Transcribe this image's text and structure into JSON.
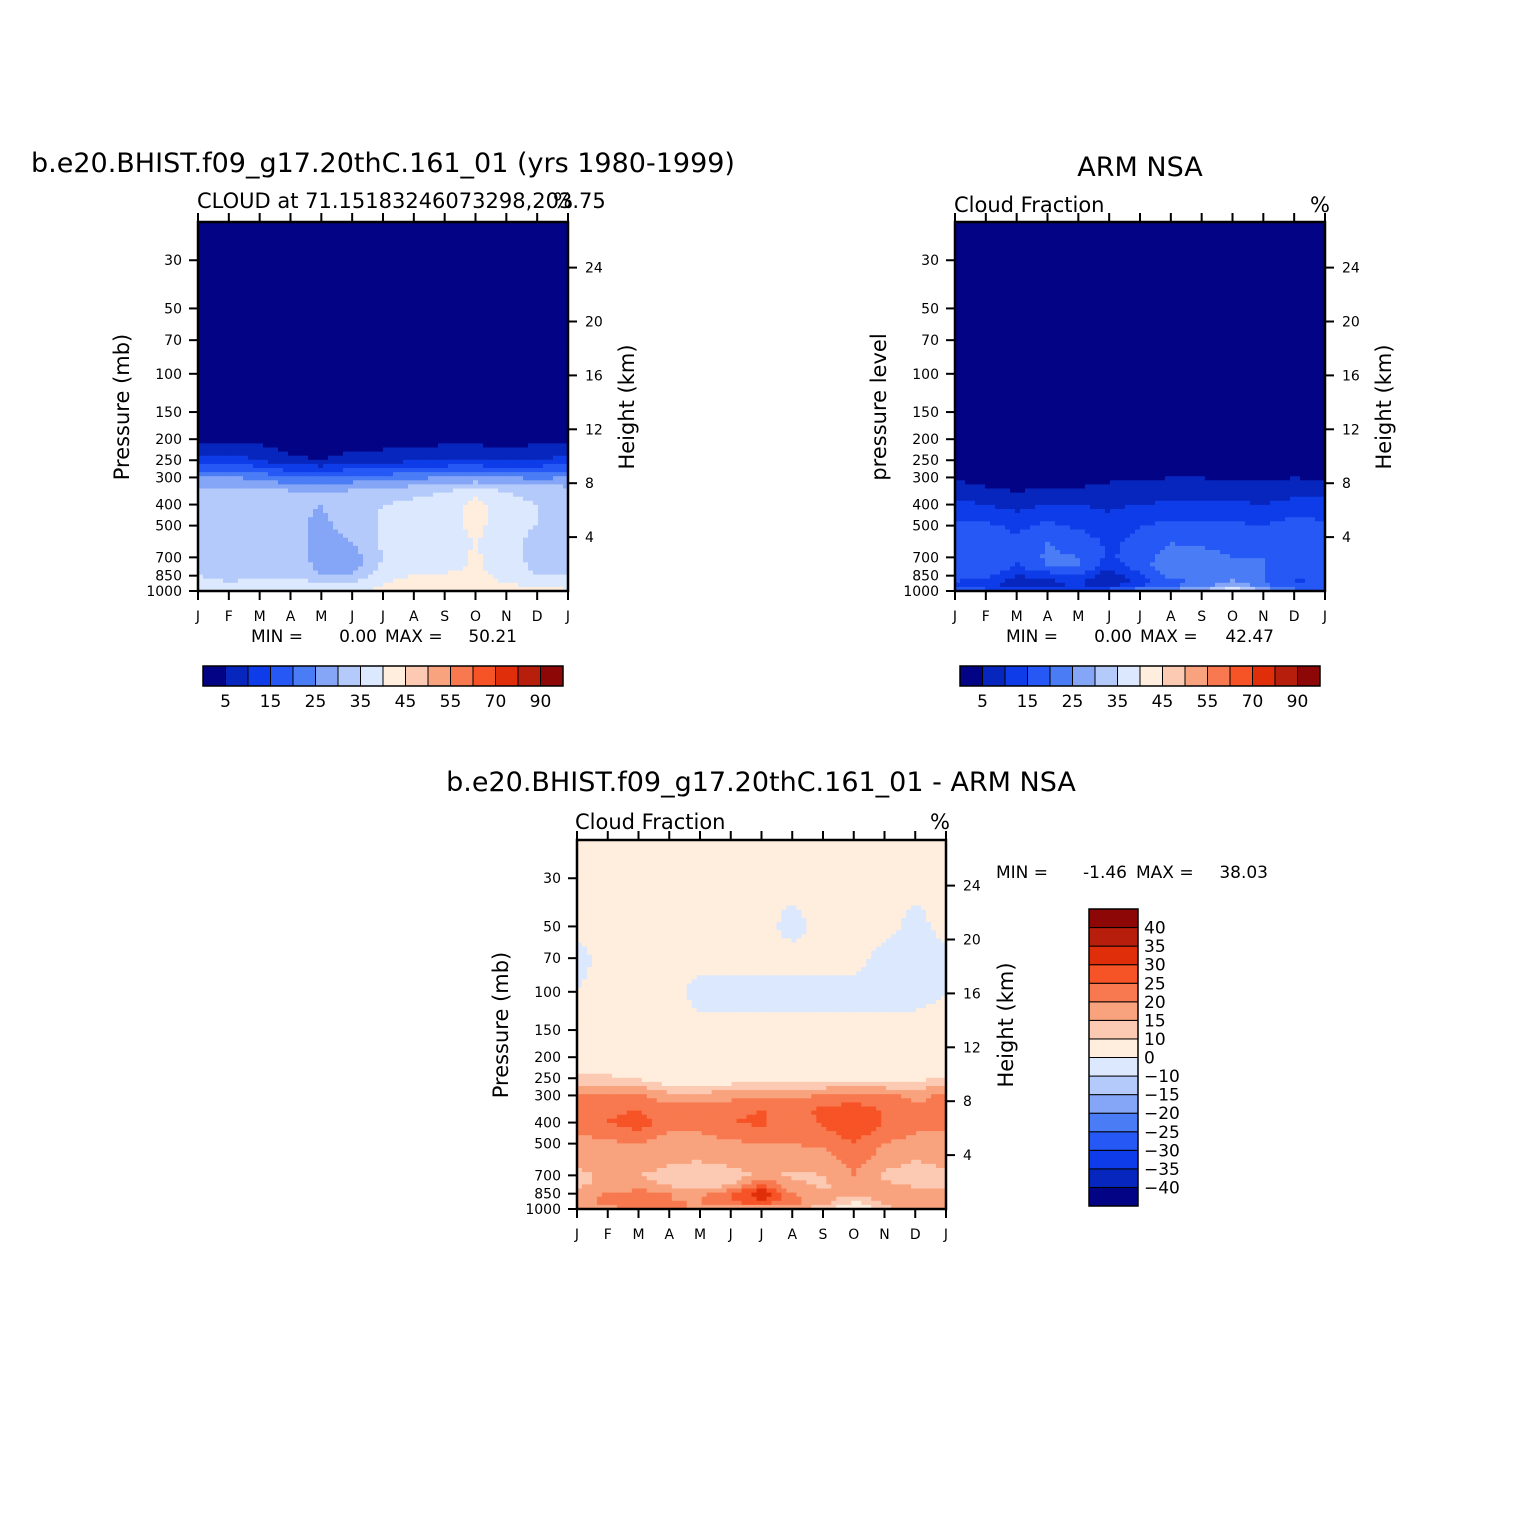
{
  "colors": {
    "cloud_scale": [
      "#030385",
      "#0726bd",
      "#0d3ce8",
      "#2558f5",
      "#4a7cf6",
      "#85a6f7",
      "#b4cafa",
      "#dbe8fd",
      "#ffeedd",
      "#fccab2",
      "#f9a27e",
      "#f8794f",
      "#f65326",
      "#e02e0b",
      "#b71e0b",
      "#8e0707"
    ],
    "diff_scale": [
      "#030385",
      "#0726bd",
      "#0d3ce8",
      "#2558f5",
      "#4a7cf6",
      "#85a6f7",
      "#b4cafa",
      "#dbe8fd",
      "#ffeedd",
      "#fccab2",
      "#f9a27e",
      "#f8794f",
      "#f65326",
      "#e02e0b",
      "#b71e0b",
      "#8e0707"
    ]
  },
  "chart_data": [
    {
      "id": "model",
      "type": "heatmap",
      "title": "b.e20.BHIST.f09_g17.20thC.161_01 (yrs 1980-1999)",
      "subtitle": "CLOUD at 71.15183246073298,203.75",
      "units_label": "%",
      "ylabel": "Pressure (mb)",
      "ylabel_right": "Height (km)",
      "xlabel": "",
      "x_ticks": [
        "J",
        "F",
        "M",
        "A",
        "M",
        "J",
        "J",
        "A",
        "S",
        "O",
        "N",
        "D",
        "J"
      ],
      "y_ticks": [
        30,
        50,
        70,
        100,
        150,
        200,
        250,
        300,
        400,
        500,
        700,
        850,
        1000
      ],
      "y_ticks_right": [
        24,
        20,
        16,
        12,
        8,
        4
      ],
      "ylim": [
        1000,
        20
      ],
      "stats": {
        "min_label": "MIN =",
        "min": "0.00",
        "max_label": "MAX =",
        "max": "50.21"
      },
      "colorbar": {
        "orientation": "horizontal",
        "labels": [
          "5",
          "15",
          "25",
          "35",
          "45",
          "55",
          "70",
          "90"
        ]
      },
      "z_levels": [
        1000,
        925,
        850,
        775,
        700,
        600,
        500,
        400,
        350,
        300,
        250,
        200,
        150,
        100,
        70,
        50,
        30,
        20
      ],
      "months": [
        "J",
        "F",
        "M",
        "A",
        "M",
        "J",
        "J",
        "A",
        "S",
        "O",
        "N",
        "D",
        "J"
      ],
      "values": [
        [
          40,
          38,
          40,
          40,
          38,
          39,
          41,
          44,
          44,
          43,
          43,
          44,
          40
        ],
        [
          38,
          36,
          37,
          38,
          36,
          37,
          40,
          43,
          44,
          43,
          40,
          38,
          38
        ],
        [
          35,
          32,
          34,
          34,
          30,
          30,
          38,
          40,
          41,
          42,
          38,
          35,
          35
        ],
        [
          34,
          31,
          34,
          33,
          29,
          28,
          36,
          38,
          38,
          41,
          37,
          34,
          34
        ],
        [
          34,
          31,
          34,
          32,
          28,
          27,
          35,
          37,
          37,
          41,
          36,
          34,
          34
        ],
        [
          35,
          33,
          34,
          32,
          28,
          30,
          36,
          37,
          37,
          40,
          36,
          34,
          35
        ],
        [
          34,
          34,
          34,
          31,
          29,
          32,
          36,
          37,
          37,
          42,
          36,
          35,
          34
        ],
        [
          34,
          34,
          33,
          31,
          30,
          32,
          35,
          36,
          37,
          42,
          36,
          35,
          34
        ],
        [
          33,
          33,
          32,
          31,
          30,
          31,
          33,
          34,
          35,
          38,
          35,
          34,
          33
        ],
        [
          25,
          25,
          24,
          20,
          20,
          22,
          22,
          24,
          25,
          26,
          25,
          24,
          25
        ],
        [
          12,
          12,
          10,
          6,
          5,
          7,
          8,
          9,
          10,
          10,
          9,
          10,
          12
        ],
        [
          4,
          4,
          3,
          2,
          2,
          2,
          2,
          3,
          3,
          3,
          3,
          3,
          4
        ],
        [
          1,
          1,
          1,
          1,
          1,
          1,
          1,
          1,
          1,
          1,
          1,
          1,
          1
        ],
        [
          0,
          0,
          0,
          0,
          0,
          0,
          0,
          0,
          0,
          0,
          0,
          0,
          0
        ],
        [
          0,
          0,
          0,
          0,
          0,
          0,
          0,
          0,
          0,
          0,
          0,
          0,
          0
        ],
        [
          0,
          0,
          0,
          0,
          0,
          0,
          0,
          0,
          0,
          0,
          0,
          0,
          0
        ],
        [
          0,
          0,
          0,
          0,
          0,
          0,
          0,
          0,
          0,
          0,
          0,
          0,
          0
        ],
        [
          0,
          0,
          0,
          0,
          0,
          0,
          0,
          0,
          0,
          0,
          0,
          0,
          0
        ]
      ]
    },
    {
      "id": "obs",
      "type": "heatmap",
      "title": "ARM NSA",
      "subtitle": "Cloud Fraction",
      "units_label": "%",
      "ylabel": "pressure level",
      "ylabel_right": "Height (km)",
      "xlabel": "",
      "x_ticks": [
        "J",
        "F",
        "M",
        "A",
        "M",
        "J",
        "J",
        "A",
        "S",
        "O",
        "N",
        "D",
        "J"
      ],
      "y_ticks": [
        30,
        50,
        70,
        100,
        150,
        200,
        250,
        300,
        400,
        500,
        700,
        850,
        1000
      ],
      "y_ticks_right": [
        24,
        20,
        16,
        12,
        8,
        4
      ],
      "ylim": [
        1000,
        20
      ],
      "stats": {
        "min_label": "MIN =",
        "min": "0.00",
        "max_label": "MAX =",
        "max": "42.47"
      },
      "colorbar": {
        "orientation": "horizontal",
        "labels": [
          "5",
          "15",
          "25",
          "35",
          "45",
          "55",
          "70",
          "90"
        ]
      },
      "z_levels": [
        1000,
        925,
        850,
        775,
        700,
        600,
        500,
        400,
        350,
        300,
        250,
        200,
        150,
        100,
        70,
        50,
        30,
        20
      ],
      "months": [
        "J",
        "F",
        "M",
        "A",
        "M",
        "J",
        "J",
        "A",
        "S",
        "O",
        "N",
        "D",
        "J"
      ],
      "values": [
        [
          20,
          16,
          14,
          14,
          16,
          18,
          24,
          26,
          30,
          42,
          30,
          22,
          20
        ],
        [
          14,
          12,
          6,
          8,
          10,
          5,
          12,
          18,
          20,
          26,
          20,
          14,
          14
        ],
        [
          18,
          16,
          10,
          12,
          14,
          6,
          14,
          22,
          22,
          24,
          20,
          16,
          18
        ],
        [
          18,
          20,
          14,
          20,
          20,
          12,
          18,
          24,
          22,
          22,
          20,
          18,
          18
        ],
        [
          18,
          20,
          16,
          21,
          20,
          14,
          18,
          22,
          22,
          20,
          20,
          20,
          18
        ],
        [
          18,
          18,
          16,
          20,
          18,
          14,
          17,
          20,
          19,
          18,
          18,
          20,
          18
        ],
        [
          16,
          16,
          14,
          16,
          14,
          12,
          15,
          16,
          16,
          16,
          15,
          17,
          16
        ],
        [
          12,
          10,
          8,
          10,
          10,
          9,
          10,
          11,
          11,
          11,
          10,
          12,
          12
        ],
        [
          8,
          6,
          5,
          6,
          6,
          7,
          7,
          8,
          8,
          7,
          7,
          8,
          8
        ],
        [
          4,
          3,
          2,
          3,
          3,
          4,
          4,
          5,
          5,
          4,
          4,
          5,
          4
        ],
        [
          1,
          1,
          1,
          1,
          1,
          1,
          1,
          2,
          2,
          1,
          1,
          2,
          1
        ],
        [
          0,
          0,
          0,
          0,
          0,
          0,
          0,
          0,
          0,
          0,
          0,
          0,
          0
        ],
        [
          0,
          0,
          0,
          0,
          0,
          0,
          0,
          0,
          0,
          0,
          0,
          0,
          0
        ],
        [
          0,
          0,
          0,
          0,
          0,
          0,
          0,
          0,
          0,
          0,
          0,
          0,
          0
        ],
        [
          0,
          0,
          0,
          0,
          0,
          0,
          0,
          0,
          0,
          0,
          0,
          0,
          0
        ],
        [
          0,
          0,
          0,
          0,
          0,
          0,
          0,
          0,
          0,
          0,
          0,
          0,
          0
        ],
        [
          0,
          0,
          0,
          0,
          0,
          0,
          0,
          0,
          0,
          0,
          0,
          0,
          0
        ],
        [
          0,
          0,
          0,
          0,
          0,
          0,
          0,
          0,
          0,
          0,
          0,
          0,
          0
        ]
      ]
    },
    {
      "id": "diff",
      "type": "heatmap",
      "title": "b.e20.BHIST.f09_g17.20thC.161_01 - ARM NSA",
      "subtitle": "Cloud Fraction",
      "units_label": "%",
      "ylabel": "Pressure (mb)",
      "ylabel_right": "Height (km)",
      "xlabel": "",
      "x_ticks": [
        "J",
        "F",
        "M",
        "A",
        "M",
        "J",
        "J",
        "A",
        "S",
        "O",
        "N",
        "D",
        "J"
      ],
      "y_ticks": [
        30,
        50,
        70,
        100,
        150,
        200,
        250,
        300,
        400,
        500,
        700,
        850,
        1000
      ],
      "y_ticks_right": [
        24,
        20,
        16,
        12,
        8,
        4
      ],
      "ylim": [
        1000,
        20
      ],
      "stats": {
        "min_label": "MIN =",
        "min": "-1.46",
        "max_label": "MAX =",
        "max": "38.03"
      },
      "colorbar": {
        "orientation": "vertical",
        "labels": [
          "40",
          "35",
          "30",
          "25",
          "20",
          "15",
          "10",
          "0",
          "-10",
          "-15",
          "-20",
          "-25",
          "-30",
          "-35",
          "-40"
        ]
      },
      "z_levels": [
        1000,
        925,
        850,
        775,
        700,
        600,
        500,
        400,
        350,
        300,
        250,
        200,
        150,
        100,
        70,
        50,
        30,
        20
      ],
      "months": [
        "J",
        "F",
        "M",
        "A",
        "M",
        "J",
        "J",
        "A",
        "S",
        "O",
        "N",
        "D",
        "J"
      ],
      "values": [
        [
          15,
          18,
          22,
          22,
          18,
          15,
          12,
          15,
          12,
          2,
          13,
          18,
          15
        ],
        [
          18,
          22,
          24,
          20,
          20,
          26,
          30,
          22,
          18,
          10,
          16,
          20,
          18
        ],
        [
          18,
          20,
          22,
          20,
          18,
          24,
          34,
          20,
          16,
          16,
          18,
          18,
          18
        ],
        [
          14,
          16,
          18,
          14,
          12,
          14,
          26,
          16,
          14,
          18,
          16,
          14,
          14
        ],
        [
          14,
          16,
          15,
          13,
          12,
          12,
          16,
          14,
          15,
          20,
          14,
          13,
          14
        ],
        [
          16,
          17,
          18,
          16,
          15,
          17,
          18,
          17,
          17,
          22,
          17,
          15,
          16
        ],
        [
          18,
          19,
          20,
          17,
          17,
          19,
          20,
          20,
          21,
          25,
          20,
          18,
          18
        ],
        [
          22,
          25,
          28,
          22,
          23,
          25,
          26,
          22,
          26,
          30,
          25,
          22,
          22
        ],
        [
          20,
          24,
          25,
          22,
          22,
          24,
          25,
          23,
          26,
          28,
          24,
          21,
          20
        ],
        [
          21,
          22,
          21,
          17,
          17,
          18,
          18,
          19,
          20,
          22,
          21,
          19,
          21
        ],
        [
          11,
          11,
          9,
          5,
          4,
          6,
          7,
          7,
          8,
          8,
          7,
          8,
          11
        ],
        [
          4,
          4,
          3,
          2,
          2,
          2,
          2,
          3,
          3,
          3,
          3,
          3,
          4
        ],
        [
          1,
          1,
          1,
          1,
          1,
          1,
          1,
          1,
          1,
          1,
          1,
          1,
          1
        ],
        [
          0,
          1,
          1,
          1,
          -1,
          -1,
          -1,
          -1,
          -1,
          -1,
          -1,
          -1,
          0
        ],
        [
          -1,
          1,
          1,
          1,
          1,
          1,
          1,
          1,
          1,
          1,
          -1,
          -1,
          -1
        ],
        [
          1,
          1,
          1,
          1,
          1,
          1,
          1,
          -1,
          1,
          1,
          1,
          -1,
          1
        ],
        [
          1,
          1,
          1,
          1,
          1,
          1,
          1,
          1,
          1,
          1,
          1,
          1,
          1
        ],
        [
          1,
          1,
          1,
          1,
          1,
          1,
          1,
          1,
          1,
          1,
          1,
          1,
          1
        ]
      ]
    }
  ]
}
